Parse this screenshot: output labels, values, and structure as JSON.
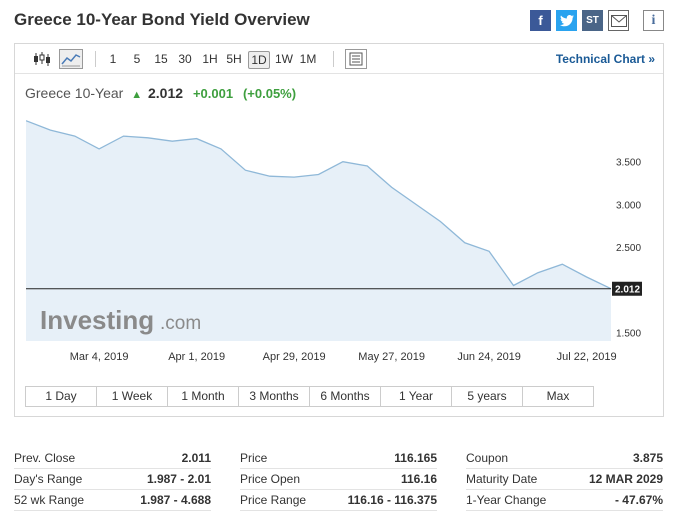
{
  "header": {
    "title": "Greece 10-Year Bond Yield Overview"
  },
  "share": {
    "facebook": "f",
    "twitter": "t",
    "stocktwits": "ST",
    "info": "i"
  },
  "toolbar": {
    "intervals": [
      "1",
      "5",
      "15",
      "30",
      "1H",
      "5H",
      "1D",
      "1W",
      "1M"
    ],
    "active_interval": "1D",
    "technical_chart": "Technical Chart »"
  },
  "quote": {
    "name": "Greece 10-Year",
    "price": "2.012",
    "change": "+0.001",
    "change_pct": "(+0.05%)"
  },
  "watermark": {
    "brand": "Investing",
    "suffix": ".com"
  },
  "chart_data": {
    "type": "area",
    "x": [
      "2019-02-11",
      "2019-02-18",
      "2019-02-25",
      "2019-03-04",
      "2019-03-11",
      "2019-03-18",
      "2019-03-25",
      "2019-04-01",
      "2019-04-08",
      "2019-04-15",
      "2019-04-22",
      "2019-04-29",
      "2019-05-06",
      "2019-05-13",
      "2019-05-20",
      "2019-05-27",
      "2019-06-03",
      "2019-06-10",
      "2019-06-17",
      "2019-06-24",
      "2019-07-01",
      "2019-07-08",
      "2019-07-15",
      "2019-07-22",
      "2019-07-29"
    ],
    "values": [
      3.98,
      3.87,
      3.8,
      3.65,
      3.8,
      3.78,
      3.74,
      3.77,
      3.65,
      3.4,
      3.33,
      3.32,
      3.35,
      3.5,
      3.45,
      3.2,
      3.0,
      2.8,
      2.55,
      2.45,
      2.05,
      2.2,
      2.3,
      2.15,
      2.012
    ],
    "xticks": [
      "Mar 4, 2019",
      "Apr 1, 2019",
      "Apr 29, 2019",
      "May 27, 2019",
      "Jun 24, 2019",
      "Jul 22, 2019"
    ],
    "yticks": [
      "3.500",
      "3.000",
      "2.500",
      "1.500"
    ],
    "ylim": [
      1.4,
      4.0
    ],
    "last_value": "2.012",
    "line_color": "#8fb8d8",
    "fill_color": "#e7f0f8"
  },
  "ranges": [
    "1 Day",
    "1 Week",
    "1 Month",
    "3 Months",
    "6 Months",
    "1 Year",
    "5 years",
    "Max"
  ],
  "stats": {
    "col1": [
      {
        "label": "Prev. Close",
        "value": "2.011"
      },
      {
        "label": "Day's Range",
        "value": "1.987 - 2.01"
      },
      {
        "label": "52 wk Range",
        "value": "1.987 - 4.688"
      }
    ],
    "col2": [
      {
        "label": "Price",
        "value": "116.165"
      },
      {
        "label": "Price Open",
        "value": "116.16"
      },
      {
        "label": "Price Range",
        "value": "116.16 - 116.375"
      }
    ],
    "col3": [
      {
        "label": "Coupon",
        "value": "3.875"
      },
      {
        "label": "Maturity Date",
        "value": "12 MAR 2029"
      },
      {
        "label": "1-Year Change",
        "value": "- 47.67%"
      }
    ]
  }
}
